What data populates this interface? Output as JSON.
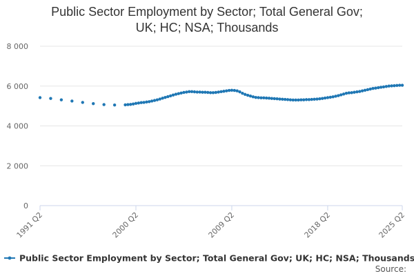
{
  "chart_data": {
    "type": "line",
    "title_line1": "Public Sector Employment by Sector; Total General Gov;",
    "title_line2": "UK; HC; NSA; Thousands",
    "ylim": [
      0,
      8000
    ],
    "yticks": [
      0,
      2000,
      4000,
      6000,
      8000
    ],
    "ytick_labels": [
      "0",
      "2 000",
      "4 000",
      "6 000",
      "8 000"
    ],
    "xtick_labels": [
      "1991 Q2",
      "2000 Q2",
      "2009 Q2",
      "2018 Q2",
      "2025 Q2"
    ],
    "grid": true,
    "legend_position": "bottom",
    "series_color": "#1f77b4",
    "series": [
      {
        "name": "Public Sector Employment by Sector; Total General Gov; UK; HC; NSA; Thousands",
        "x": [
          "1991 Q2",
          "1992 Q2",
          "1993 Q2",
          "1994 Q2",
          "1995 Q2",
          "1996 Q2",
          "1997 Q2",
          "1998 Q2",
          "1999 Q2",
          "1999 Q3",
          "1999 Q4",
          "2000 Q1",
          "2000 Q2",
          "2000 Q3",
          "2000 Q4",
          "2001 Q1",
          "2001 Q2",
          "2001 Q3",
          "2001 Q4",
          "2002 Q1",
          "2002 Q2",
          "2002 Q3",
          "2002 Q4",
          "2003 Q1",
          "2003 Q2",
          "2003 Q3",
          "2003 Q4",
          "2004 Q1",
          "2004 Q2",
          "2004 Q3",
          "2004 Q4",
          "2005 Q1",
          "2005 Q2",
          "2005 Q3",
          "2005 Q4",
          "2006 Q1",
          "2006 Q2",
          "2006 Q3",
          "2006 Q4",
          "2007 Q1",
          "2007 Q2",
          "2007 Q3",
          "2007 Q4",
          "2008 Q1",
          "2008 Q2",
          "2008 Q3",
          "2008 Q4",
          "2009 Q1",
          "2009 Q2",
          "2009 Q3",
          "2009 Q4",
          "2010 Q1",
          "2010 Q2",
          "2010 Q3",
          "2010 Q4",
          "2011 Q1",
          "2011 Q2",
          "2011 Q3",
          "2011 Q4",
          "2012 Q1",
          "2012 Q2",
          "2012 Q3",
          "2012 Q4",
          "2013 Q1",
          "2013 Q2",
          "2013 Q3",
          "2013 Q4",
          "2014 Q1",
          "2014 Q2",
          "2014 Q3",
          "2014 Q4",
          "2015 Q1",
          "2015 Q2",
          "2015 Q3",
          "2015 Q4",
          "2016 Q1",
          "2016 Q2",
          "2016 Q3",
          "2016 Q4",
          "2017 Q1",
          "2017 Q2",
          "2017 Q3",
          "2017 Q4",
          "2018 Q1",
          "2018 Q2",
          "2018 Q3",
          "2018 Q4",
          "2019 Q1",
          "2019 Q2",
          "2019 Q3",
          "2019 Q4",
          "2020 Q1",
          "2020 Q2",
          "2020 Q3",
          "2020 Q4",
          "2021 Q1",
          "2021 Q2",
          "2021 Q3",
          "2021 Q4",
          "2022 Q1",
          "2022 Q2",
          "2022 Q3",
          "2022 Q4",
          "2023 Q1",
          "2023 Q2",
          "2023 Q3",
          "2023 Q4",
          "2024 Q1",
          "2024 Q2",
          "2024 Q3",
          "2024 Q4",
          "2025 Q1",
          "2025 Q2"
        ],
        "values": [
          5420,
          5380,
          5310,
          5250,
          5180,
          5120,
          5070,
          5050,
          5060,
          5070,
          5080,
          5100,
          5130,
          5150,
          5170,
          5180,
          5200,
          5220,
          5250,
          5280,
          5310,
          5350,
          5390,
          5430,
          5470,
          5510,
          5550,
          5590,
          5620,
          5650,
          5680,
          5700,
          5720,
          5720,
          5710,
          5700,
          5700,
          5690,
          5690,
          5680,
          5670,
          5670,
          5680,
          5700,
          5720,
          5740,
          5760,
          5780,
          5790,
          5780,
          5760,
          5710,
          5640,
          5580,
          5540,
          5500,
          5460,
          5430,
          5420,
          5410,
          5410,
          5400,
          5390,
          5380,
          5370,
          5360,
          5350,
          5340,
          5330,
          5320,
          5310,
          5300,
          5300,
          5300,
          5310,
          5310,
          5320,
          5320,
          5330,
          5340,
          5350,
          5360,
          5380,
          5400,
          5420,
          5440,
          5460,
          5490,
          5520,
          5560,
          5600,
          5640,
          5660,
          5670,
          5690,
          5710,
          5730,
          5760,
          5790,
          5820,
          5850,
          5880,
          5900,
          5920,
          5940,
          5960,
          5980,
          6000,
          6010,
          6020,
          6030,
          6040,
          6040
        ]
      }
    ]
  },
  "legend": {
    "label": "Public Sector Employment by Sector; Total General Gov; UK; HC; NSA; Thousands"
  },
  "footer": {
    "source_label": "Source:"
  }
}
